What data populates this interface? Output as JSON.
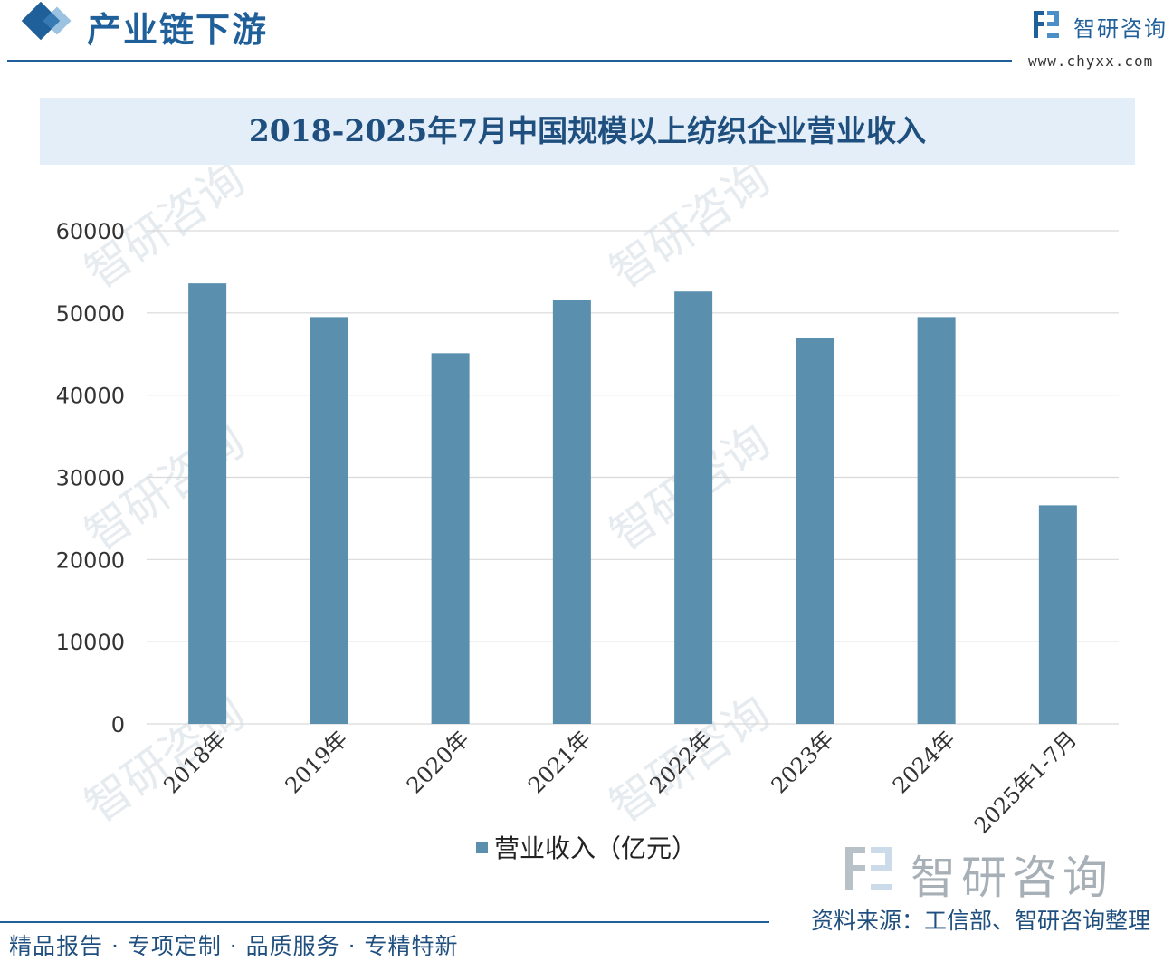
{
  "header": {
    "section_title": "产业链下游",
    "brand_name": "智研咨询",
    "brand_url": "www.chyxx.com"
  },
  "chart_data": {
    "type": "bar",
    "title": "2018-2025年7月中国规模以上纺织企业营业收入",
    "categories": [
      "2018年",
      "2019年",
      "2020年",
      "2021年",
      "2022年",
      "2023年",
      "2024年",
      "2025年1-7月"
    ],
    "series": [
      {
        "name": "营业收入（亿元）",
        "values": [
          53600,
          49500,
          45100,
          51600,
          52600,
          47000,
          49500,
          26600
        ]
      }
    ],
    "ylim": [
      0,
      60000
    ],
    "yticks": [
      "0",
      "10000",
      "20000",
      "30000",
      "40000",
      "50000",
      "60000"
    ],
    "grid": true,
    "legend_position": "bottom",
    "bar_color": "#5b8fae"
  },
  "footer": {
    "source": "资料来源：工信部、智研咨询整理",
    "slogan": "精品报告 · 专项定制 · 品质服务 · 专精特新",
    "logo_name": "智研咨询"
  },
  "colors": {
    "accent": "#1f5f9a",
    "banner_bg": "#e3eef8",
    "grid": "#d9d9d9"
  }
}
